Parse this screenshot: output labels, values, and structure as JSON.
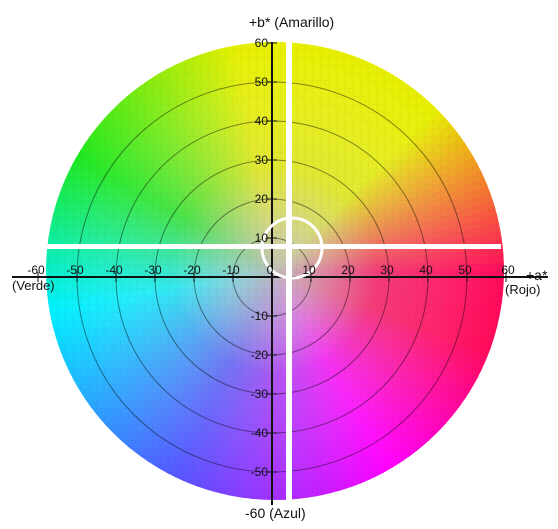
{
  "diagram": {
    "b_axis_top_label": "+b* (Amarillo)",
    "b_axis_bottom_label": "-60 (Azul)",
    "a_axis_label": "+a*",
    "left_label": "(Verde)",
    "right_label": "(Rojo)",
    "a_ticks": [
      "-60",
      "-50",
      "-40",
      "-30",
      "-20",
      "-10",
      "0",
      "10",
      "20",
      "30",
      "40",
      "50",
      "60"
    ],
    "b_ticks_positive": [
      "60",
      "50",
      "40",
      "30",
      "20",
      "10"
    ],
    "b_ticks_negative": [
      "-10",
      "-20",
      "-30",
      "-40",
      "-50"
    ],
    "colors": {
      "green": "#1fe81f",
      "yellow": "#e6ef00",
      "red": "#ff0a5a",
      "magenta": "#ff00ff",
      "blue": "#5555ff",
      "cyan": "#00f0ff",
      "axis": "#111111",
      "overlay": "#ffffff"
    }
  }
}
